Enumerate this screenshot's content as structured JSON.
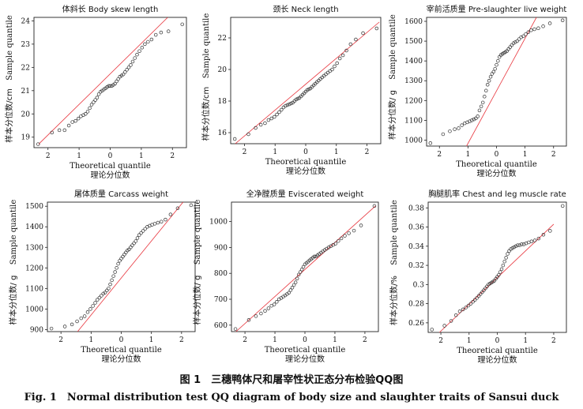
{
  "figure": {
    "caption_cn": "图 1　三穗鸭体尺和屠宰性状正态分布检验QQ图",
    "caption_en": "Fig. 1　Normal distribution test QQ diagram of body size and slaughter traits of Sansui duck"
  },
  "chart_data": [
    {
      "type": "scatter",
      "title": "体斜长  Body skew length",
      "xlabel": "Theoretical  quantile",
      "xlabel_cn": "理论分位数",
      "ylabel": "Sample quantile",
      "ylabel_cn": "样本分位数/cm",
      "xlim": [
        -2.45,
        2.45
      ],
      "ylim": [
        18.55,
        24.15
      ],
      "xticks": [
        -2,
        -1,
        0,
        1,
        2
      ],
      "xtick_labels": [
        "2",
        "1",
        "0",
        "1",
        "2"
      ],
      "yticks": [
        19,
        20,
        21,
        22,
        23,
        24
      ],
      "ref_line": [
        [
          -2.3,
          18.7
        ],
        [
          1.85,
          24.15
        ]
      ],
      "quantiles": [
        18.7,
        19.2,
        19.3,
        19.3,
        19.5,
        19.65,
        19.7,
        19.8,
        19.9,
        19.95,
        20.0,
        20.1,
        20.25,
        20.4,
        20.5,
        20.6,
        20.7,
        20.85,
        20.95,
        21.0,
        21.05,
        21.1,
        21.15,
        21.2,
        21.2,
        21.2,
        21.25,
        21.3,
        21.4,
        21.5,
        21.6,
        21.65,
        21.7,
        21.8,
        21.9,
        22.0,
        22.1,
        22.25,
        22.4,
        22.55,
        22.7,
        22.85,
        23.0,
        23.1,
        23.2,
        23.4,
        23.5,
        23.55,
        23.85
      ]
    },
    {
      "type": "scatter",
      "title": "颈长  Neck length",
      "xlabel": "Theoretical  quantile",
      "xlabel_cn": "理论分位数",
      "ylabel": "Sample quantile",
      "ylabel_cn": "样本分位数/cm",
      "xlim": [
        -2.45,
        2.45
      ],
      "ylim": [
        15.3,
        23.3
      ],
      "xticks": [
        -2,
        -1,
        0,
        1,
        2
      ],
      "xtick_labels": [
        "2",
        "1",
        "0",
        "1",
        "2"
      ],
      "yticks": [
        16,
        18,
        20,
        22
      ],
      "ref_line": [
        [
          -2.3,
          15.3
        ],
        [
          2.4,
          23.0
        ]
      ],
      "quantiles": [
        15.6,
        15.9,
        16.3,
        16.5,
        16.6,
        16.8,
        16.9,
        17.0,
        17.15,
        17.3,
        17.45,
        17.6,
        17.7,
        17.75,
        17.8,
        17.85,
        17.9,
        18.0,
        18.1,
        18.15,
        18.2,
        18.3,
        18.4,
        18.5,
        18.6,
        18.7,
        18.75,
        18.8,
        18.9,
        19.0,
        19.1,
        19.2,
        19.3,
        19.4,
        19.5,
        19.6,
        19.7,
        19.8,
        19.9,
        20.0,
        20.2,
        20.4,
        20.7,
        20.9,
        21.2,
        21.6,
        21.9,
        22.3,
        22.6
      ]
    },
    {
      "type": "scatter",
      "title": "宰前活质量  Pre-slaughter live weight",
      "xlabel": "Theoretical  quantile",
      "xlabel_cn": "理论分位数",
      "ylabel": "Sample quantile",
      "ylabel_cn": "样本分位数/ g",
      "xlim": [
        -2.45,
        2.45
      ],
      "ylim": [
        970,
        1620
      ],
      "xticks": [
        -2,
        -1,
        0,
        1,
        2
      ],
      "xtick_labels": [
        "2",
        "1",
        "0",
        "1",
        "2"
      ],
      "yticks": [
        1000,
        1100,
        1200,
        1300,
        1400,
        1500,
        1600
      ],
      "ref_line": [
        [
          -1.05,
          970
        ],
        [
          1.4,
          1620
        ]
      ],
      "quantiles": [
        985,
        1030,
        1045,
        1055,
        1060,
        1075,
        1085,
        1090,
        1095,
        1100,
        1105,
        1110,
        1120,
        1150,
        1170,
        1190,
        1220,
        1250,
        1280,
        1300,
        1320,
        1335,
        1345,
        1360,
        1380,
        1400,
        1420,
        1430,
        1435,
        1440,
        1445,
        1450,
        1460,
        1470,
        1480,
        1490,
        1495,
        1500,
        1510,
        1520,
        1525,
        1535,
        1545,
        1555,
        1560,
        1565,
        1575,
        1590,
        1605
      ]
    },
    {
      "type": "scatter",
      "title": "屠体质量  Carcass weight",
      "xlabel": "Theoretical  quantile",
      "xlabel_cn": "理论分位数",
      "ylabel": "Sample quantile",
      "ylabel_cn": "样本分位数/ g",
      "xlim": [
        -2.45,
        2.45
      ],
      "ylim": [
        890,
        1520
      ],
      "xticks": [
        -2,
        -1,
        0,
        1,
        2
      ],
      "xtick_labels": [
        "2",
        "1",
        "0",
        "1",
        "2"
      ],
      "yticks": [
        900,
        1000,
        1100,
        1200,
        1300,
        1400,
        1500
      ],
      "ref_line": [
        [
          -1.45,
          890
        ],
        [
          2.05,
          1520
        ]
      ],
      "quantiles": [
        905,
        915,
        925,
        940,
        955,
        965,
        985,
        1000,
        1015,
        1030,
        1045,
        1055,
        1065,
        1075,
        1080,
        1090,
        1100,
        1120,
        1140,
        1160,
        1180,
        1200,
        1220,
        1235,
        1245,
        1255,
        1265,
        1275,
        1285,
        1290,
        1300,
        1310,
        1320,
        1330,
        1345,
        1360,
        1370,
        1380,
        1390,
        1400,
        1405,
        1410,
        1415,
        1420,
        1425,
        1435,
        1460,
        1490,
        1505
      ]
    },
    {
      "type": "scatter",
      "title": "全净膛质量  Eviscerated weight",
      "xlabel": "Theoretical  quantile",
      "xlabel_cn": "理论分位数",
      "ylabel": "Sample quantile",
      "ylabel_cn": "样本分位数/ g",
      "xlim": [
        -2.45,
        2.45
      ],
      "ylim": [
        575,
        1075
      ],
      "xticks": [
        -2,
        -1,
        0,
        1,
        2
      ],
      "xtick_labels": [
        "2",
        "1",
        "0",
        "1",
        "2"
      ],
      "yticks": [
        600,
        700,
        800,
        900,
        1000
      ],
      "ref_line": [
        [
          -2.3,
          575
        ],
        [
          2.35,
          1060
        ]
      ],
      "quantiles": [
        585,
        620,
        635,
        645,
        655,
        665,
        675,
        680,
        690,
        700,
        705,
        710,
        715,
        720,
        725,
        735,
        745,
        755,
        765,
        780,
        795,
        805,
        815,
        825,
        835,
        840,
        845,
        850,
        855,
        860,
        865,
        865,
        870,
        875,
        880,
        885,
        890,
        895,
        900,
        905,
        910,
        915,
        925,
        935,
        945,
        955,
        965,
        985,
        1060
      ]
    },
    {
      "type": "scatter",
      "title": "胸腿肌率  Chest and leg muscle rate",
      "xlabel": "Theoretical  quantile",
      "xlabel_cn": "理论分位数",
      "ylabel": "Sample quantile",
      "ylabel_cn": "样本分位数/%",
      "xlim": [
        -2.45,
        2.45
      ],
      "ylim": [
        0.25,
        0.386
      ],
      "xticks": [
        -2,
        -1,
        0,
        1,
        2
      ],
      "xtick_labels": [
        "2",
        "1",
        "0",
        "1",
        "2"
      ],
      "yticks": [
        0.26,
        0.28,
        0.3,
        0.32,
        0.34,
        0.36,
        0.38
      ],
      "ref_line": [
        [
          -2.05,
          0.25
        ],
        [
          2.0,
          0.363
        ]
      ],
      "quantiles": [
        0.253,
        0.257,
        0.262,
        0.268,
        0.272,
        0.274,
        0.276,
        0.278,
        0.28,
        0.282,
        0.284,
        0.286,
        0.288,
        0.29,
        0.292,
        0.294,
        0.296,
        0.298,
        0.3,
        0.301,
        0.302,
        0.303,
        0.304,
        0.306,
        0.308,
        0.31,
        0.313,
        0.316,
        0.32,
        0.324,
        0.328,
        0.332,
        0.335,
        0.337,
        0.338,
        0.339,
        0.34,
        0.341,
        0.341,
        0.342,
        0.342,
        0.343,
        0.344,
        0.345,
        0.346,
        0.348,
        0.352,
        0.356,
        0.382
      ]
    }
  ]
}
